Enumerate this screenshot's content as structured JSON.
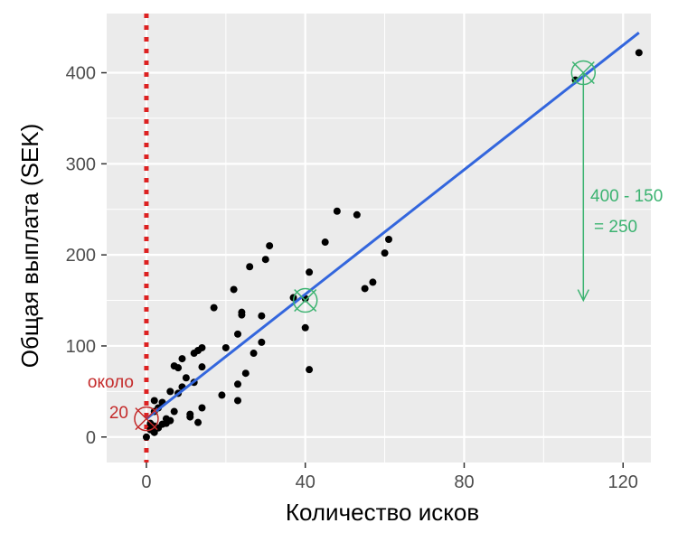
{
  "chart_data": {
    "type": "scatter",
    "xlabel": "Количество исков",
    "ylabel": "Общая выплата (SEK)",
    "xlim": [
      -10,
      127
    ],
    "ylim": [
      -28,
      465
    ],
    "x_ticks": [
      0,
      40,
      80,
      120
    ],
    "y_ticks": [
      0,
      100,
      200,
      300,
      400
    ],
    "x_tick_labels": [
      "0",
      "40",
      "80",
      "120"
    ],
    "y_tick_labels": [
      "0",
      "100",
      "200",
      "300",
      "400"
    ],
    "grid": true,
    "points": [
      [
        0,
        0
      ],
      [
        1,
        8
      ],
      [
        1,
        15
      ],
      [
        2,
        5
      ],
      [
        2,
        12
      ],
      [
        2,
        28
      ],
      [
        2,
        40
      ],
      [
        3,
        10
      ],
      [
        3,
        32
      ],
      [
        4,
        14
      ],
      [
        4,
        38
      ],
      [
        5,
        15
      ],
      [
        5,
        20
      ],
      [
        6,
        18
      ],
      [
        6,
        50
      ],
      [
        7,
        28
      ],
      [
        7,
        78
      ],
      [
        8,
        48
      ],
      [
        8,
        76
      ],
      [
        9,
        55
      ],
      [
        9,
        86
      ],
      [
        10,
        65
      ],
      [
        11,
        22
      ],
      [
        11,
        25
      ],
      [
        12,
        60
      ],
      [
        12,
        92
      ],
      [
        13,
        16
      ],
      [
        13,
        95
      ],
      [
        14,
        32
      ],
      [
        14,
        77
      ],
      [
        14,
        98
      ],
      [
        17,
        142
      ],
      [
        19,
        46
      ],
      [
        20,
        98
      ],
      [
        22,
        162
      ],
      [
        23,
        40
      ],
      [
        23,
        58
      ],
      [
        23,
        113
      ],
      [
        24,
        137
      ],
      [
        24,
        134
      ],
      [
        25,
        70
      ],
      [
        26,
        187
      ],
      [
        27,
        92
      ],
      [
        29,
        133
      ],
      [
        29,
        104
      ],
      [
        30,
        195
      ],
      [
        31,
        210
      ],
      [
        37,
        153
      ],
      [
        40,
        152
      ],
      [
        40,
        120
      ],
      [
        41,
        181
      ],
      [
        41,
        74
      ],
      [
        45,
        214
      ],
      [
        48,
        248
      ],
      [
        53,
        244
      ],
      [
        55,
        163
      ],
      [
        57,
        170
      ],
      [
        60,
        202
      ],
      [
        61,
        217
      ],
      [
        108,
        392
      ],
      [
        124,
        422
      ]
    ],
    "regression_line": {
      "x": [
        0,
        124
      ],
      "y": [
        19.99,
        443.96
      ],
      "color": "#3366dd"
    },
    "vertical_line": {
      "x": 0,
      "color": "#dd2222",
      "style": "dotted"
    },
    "markers": [
      {
        "x": 0,
        "y": 20,
        "color": "#c42a2a"
      },
      {
        "x": 40,
        "y": 150,
        "color": "#3cb371"
      },
      {
        "x": 110,
        "y": 400,
        "color": "#3cb371"
      }
    ],
    "arrow": {
      "x": 110,
      "y_from": 400,
      "y_to": 150,
      "color": "#3cb371"
    },
    "annotations": {
      "intercept_line1": "около",
      "intercept_line2": "20",
      "slope_line1": "400 - 150",
      "slope_line2": "= 250"
    },
    "colors": {
      "panel": "#ebebeb",
      "grid": "#ffffff",
      "points": "#000000"
    }
  }
}
